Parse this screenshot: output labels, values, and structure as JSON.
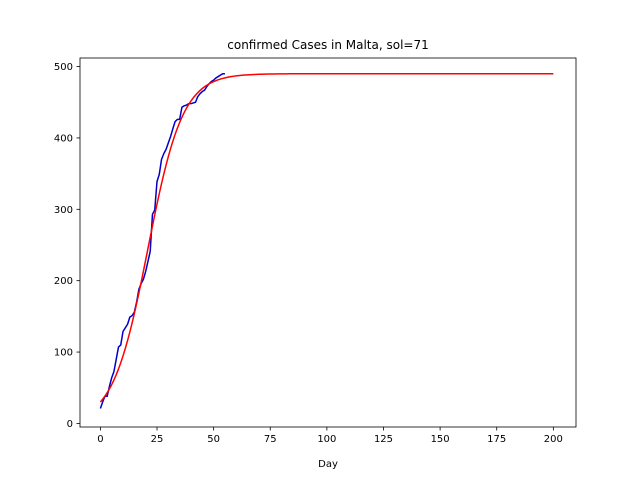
{
  "chart_data": {
    "type": "line",
    "title": "confirmed Cases in Malta, sol=71",
    "xlabel": "Day",
    "ylabel": "",
    "xlim": [
      -9,
      210
    ],
    "ylim": [
      -5,
      512
    ],
    "xticks": [
      0,
      25,
      50,
      75,
      100,
      125,
      150,
      175,
      200
    ],
    "yticks": [
      0,
      100,
      200,
      300,
      400,
      500
    ],
    "grid": false,
    "series": [
      {
        "name": "confirmed",
        "color": "#0000cd",
        "x": [
          0,
          1,
          2,
          3,
          4,
          5,
          6,
          7,
          8,
          9,
          10,
          11,
          12,
          13,
          14,
          15,
          16,
          17,
          18,
          19,
          20,
          21,
          22,
          23,
          24,
          25,
          26,
          27,
          28,
          29,
          30,
          31,
          32,
          33,
          34,
          35,
          36,
          37,
          38,
          39,
          40,
          41,
          42,
          43,
          44,
          45,
          46,
          47,
          48,
          49,
          50,
          51,
          52,
          53,
          54,
          55
        ],
        "values": [
          21,
          30,
          38,
          38,
          52,
          64,
          73,
          90,
          107,
          110,
          129,
          134,
          139,
          149,
          151,
          156,
          170,
          188,
          196,
          202,
          213,
          227,
          241,
          293,
          299,
          339,
          349,
          370,
          378,
          384,
          393,
          402,
          413,
          423,
          426,
          426,
          443,
          445,
          446,
          448,
          448,
          449,
          450,
          458,
          462,
          465,
          467,
          472,
          476,
          479,
          481,
          484,
          486,
          488,
          490,
          490
        ]
      },
      {
        "name": "fit",
        "color": "#ff0000",
        "model": "logistic",
        "params": {
          "K": 490,
          "r": 0.13,
          "t0": 21
        },
        "x_range": [
          0,
          200
        ]
      }
    ]
  }
}
